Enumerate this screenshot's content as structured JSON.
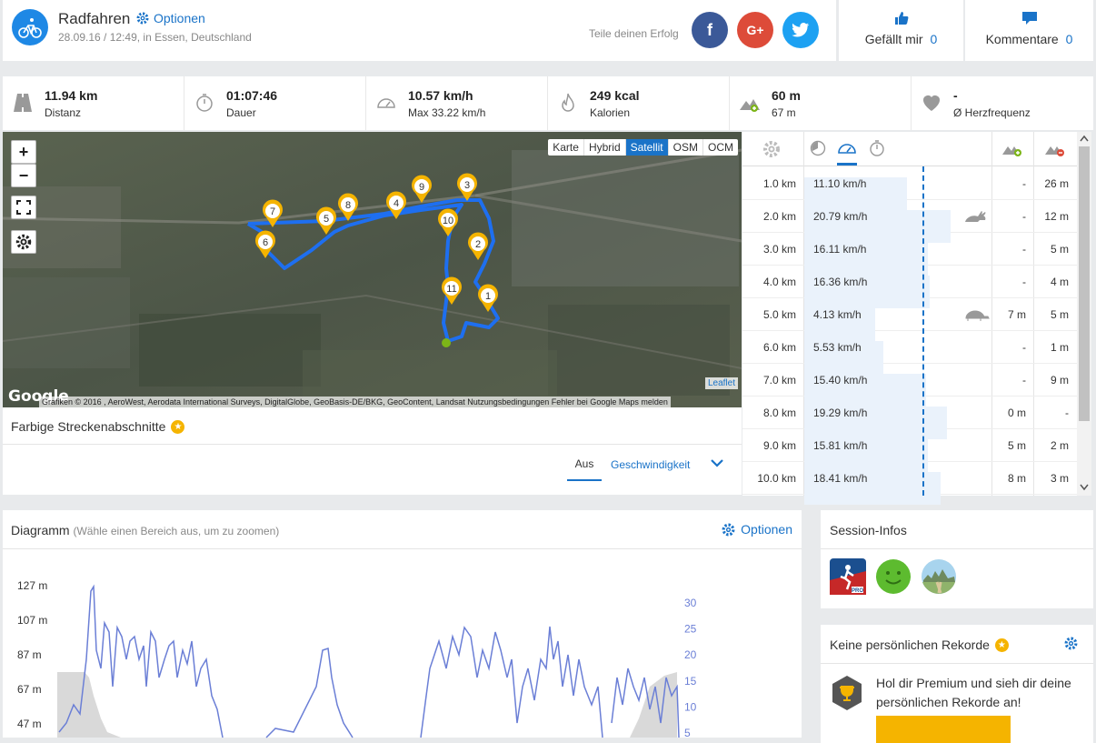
{
  "header": {
    "title": "Radfahren",
    "options_label": "Optionen",
    "subtitle": "28.09.16 / 12:49, in Essen, Deutschland",
    "share_label": "Teile deinen Erfolg",
    "likes_label": "Gefällt mir",
    "likes_count": "0",
    "comments_label": "Kommentare",
    "comments_count": "0"
  },
  "stats": [
    {
      "icon": "road-icon",
      "value": "11.94 km",
      "label": "Distanz"
    },
    {
      "icon": "stopwatch-icon",
      "value": "01:07:46",
      "label": "Dauer"
    },
    {
      "icon": "speedometer-icon",
      "value": "10.57 km/h",
      "label": "Max 33.22 km/h"
    },
    {
      "icon": "flame-icon",
      "value": "249 kcal",
      "label": "Kalorien"
    },
    {
      "icon": "elevation-icon",
      "value": "60 m",
      "label": "67 m"
    },
    {
      "icon": "heart-icon",
      "value": "-",
      "label": "Ø Herzfrequenz"
    }
  ],
  "map": {
    "layers": [
      "Karte",
      "Hybrid",
      "Satellit",
      "OSM",
      "OCM"
    ],
    "active_layer": "Satellit",
    "attribution": "Grafiken © 2016 , AeroWest, Aerodata International Surveys, DigitalGlobe, GeoBasis-DE/BKG, GeoContent, Landsat     Nutzungsbedingungen     Fehler bei Google Maps melden",
    "leaflet_label": "Leaflet",
    "google_label": "Google",
    "markers": [
      "1",
      "2",
      "3",
      "4",
      "5",
      "6",
      "7",
      "8",
      "9",
      "10",
      "11"
    ],
    "route_color": "#1e6ff0"
  },
  "segments": {
    "title": "Farbige Streckenabschnitte",
    "tab_off": "Aus",
    "tab_speed": "Geschwindigkeit"
  },
  "km_table": [
    {
      "km": "1.0 km",
      "speed": "11.10 km/h",
      "ratio": 0.55,
      "icon": "",
      "up": "-",
      "down": "26 m"
    },
    {
      "km": "2.0 km",
      "speed": "20.79 km/h",
      "ratio": 0.78,
      "icon": "rabbit-icon",
      "up": "-",
      "down": "12 m"
    },
    {
      "km": "3.0 km",
      "speed": "16.11 km/h",
      "ratio": 0.66,
      "icon": "",
      "up": "-",
      "down": "5 m"
    },
    {
      "km": "4.0 km",
      "speed": "16.36 km/h",
      "ratio": 0.67,
      "icon": "",
      "up": "-",
      "down": "4 m"
    },
    {
      "km": "5.0 km",
      "speed": "4.13 km/h",
      "ratio": 0.38,
      "icon": "turtle-icon",
      "up": "7 m",
      "down": "5 m"
    },
    {
      "km": "6.0 km",
      "speed": "5.53 km/h",
      "ratio": 0.42,
      "icon": "",
      "up": "-",
      "down": "1 m"
    },
    {
      "km": "7.0 km",
      "speed": "15.40 km/h",
      "ratio": 0.65,
      "icon": "",
      "up": "-",
      "down": "9 m"
    },
    {
      "km": "8.0 km",
      "speed": "19.29 km/h",
      "ratio": 0.76,
      "icon": "",
      "up": "0 m",
      "down": "-"
    },
    {
      "km": "9.0 km",
      "speed": "15.81 km/h",
      "ratio": 0.66,
      "icon": "",
      "up": "5 m",
      "down": "2 m"
    },
    {
      "km": "10.0 km",
      "speed": "18.41 km/h",
      "ratio": 0.73,
      "icon": "",
      "up": "8 m",
      "down": "3 m"
    }
  ],
  "diagram": {
    "title": "Diagramm",
    "hint": "(Wähle einen Bereich aus, um zu zoomen)",
    "options_label": "Optionen",
    "left_axis": [
      "127 m",
      "107 m",
      "87 m",
      "67 m",
      "47 m"
    ],
    "right_axis": [
      "30",
      "25",
      "20",
      "15",
      "10",
      "5"
    ]
  },
  "session": {
    "title": "Session-Infos",
    "icons": [
      "runtastic-pro-icon",
      "smiley-icon",
      "landscape-icon"
    ]
  },
  "records": {
    "title": "Keine persönlichen Rekorde",
    "text": "Hol dir Premium und sieh dir deine persönlichen Rekorde an!"
  },
  "colors": {
    "accent": "#1a73c8",
    "facebook": "#3b5998",
    "google": "#dd4b39",
    "twitter": "#1da1f2",
    "gold": "#f5b400"
  }
}
